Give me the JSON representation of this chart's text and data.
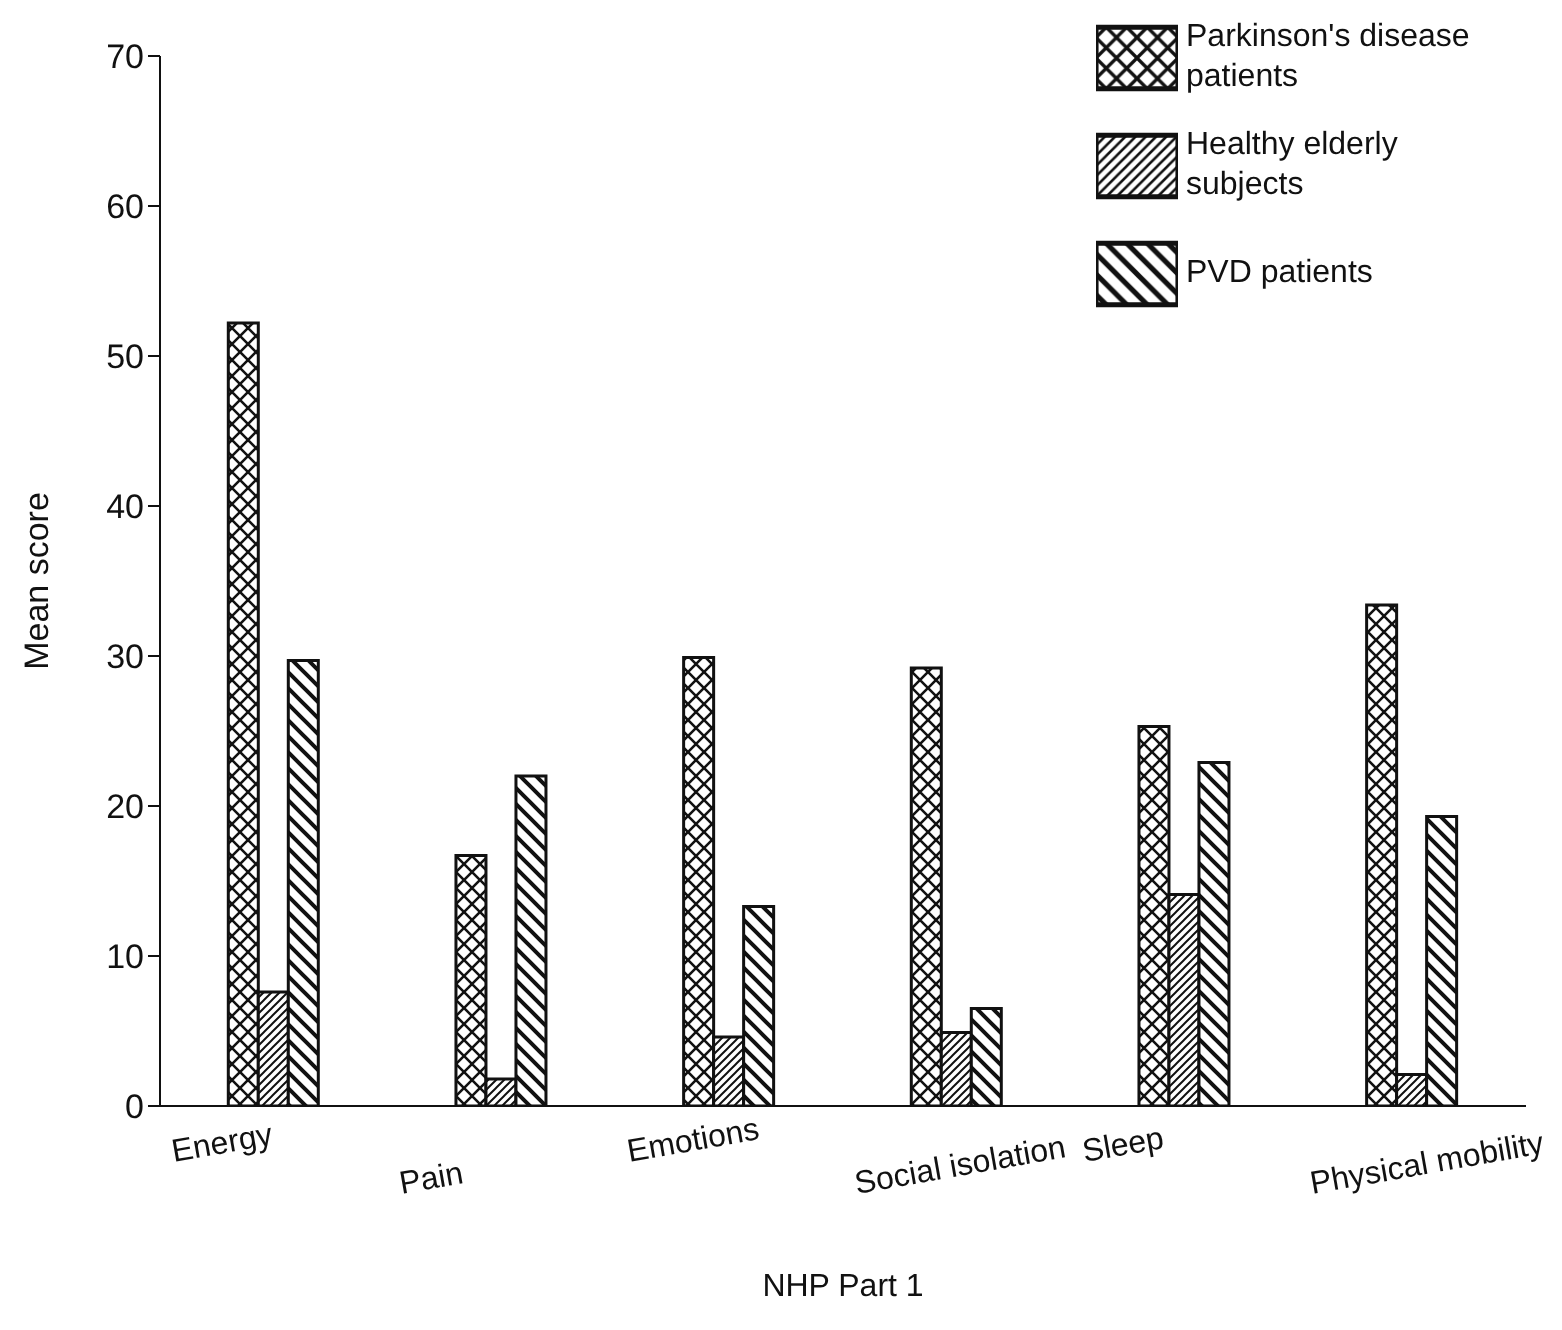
{
  "chart_data": {
    "type": "bar",
    "xlabel": "NHP Part 1",
    "ylabel": "Mean score",
    "categories": [
      "Energy",
      "Pain",
      "Emotions",
      "Social isolation",
      "Sleep",
      "Physical mobility"
    ],
    "series": [
      {
        "name": "Parkinson's disease patients",
        "color": "#111111",
        "values": [
          52.2,
          16.7,
          29.9,
          29.2,
          25.3,
          33.4
        ]
      },
      {
        "name": "Healthy elderly subjects",
        "color": "#111111",
        "values": [
          7.6,
          1.8,
          4.6,
          4.9,
          14.1,
          2.1
        ]
      },
      {
        "name": "PVD patients",
        "color": "#111111",
        "values": [
          29.7,
          22,
          13.3,
          6.5,
          22.9,
          19.3
        ]
      }
    ],
    "ylim": [
      0,
      70
    ],
    "yticks": [
      0,
      10,
      20,
      30,
      40,
      50,
      60,
      70
    ],
    "grid": false,
    "legend": "top right"
  }
}
